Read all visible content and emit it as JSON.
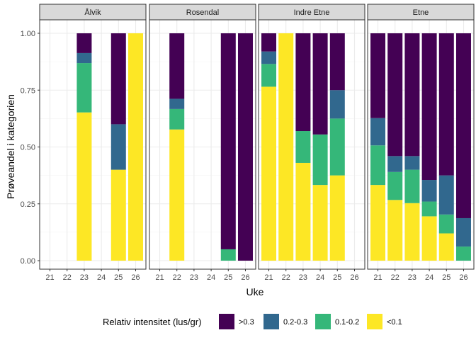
{
  "chart_data": {
    "type": "bar",
    "stacked": true,
    "xlabel": "Uke",
    "ylabel": "Prøveandel i kategorien",
    "ylim": [
      0,
      1
    ],
    "y_ticks": [
      "0.00",
      "0.25",
      "0.50",
      "0.75",
      "1.00"
    ],
    "x_ticks": [
      "21",
      "22",
      "23",
      "24",
      "25",
      "26"
    ],
    "legend": {
      "title": "Relativ intensitet (lus/gr)",
      "position": "bottom",
      "entries": [
        {
          "key": "gt03",
          "label": ">0.3",
          "color": "#440154"
        },
        {
          "key": "b0203",
          "label": "0.2-0.3",
          "color": "#31688E"
        },
        {
          "key": "b0102",
          "label": "0.1-0.2",
          "color": "#35B779"
        },
        {
          "key": "lt01",
          "label": "<0.1",
          "color": "#FDE725"
        }
      ]
    },
    "stack_order_bottom_to_top": [
      "lt01",
      "b0102",
      "b0203",
      "gt03"
    ],
    "panels": [
      {
        "title": "Ålvik",
        "bars": [
          {
            "week": 23,
            "lt01": 0.652,
            "b0102": 0.217,
            "b0203": 0.044,
            "gt03": 0.087
          },
          {
            "week": 25,
            "lt01": 0.4,
            "b0102": 0.0,
            "b0203": 0.2,
            "gt03": 0.4
          },
          {
            "week": 26,
            "lt01": 1.0,
            "b0102": 0.0,
            "b0203": 0.0,
            "gt03": 0.0
          }
        ]
      },
      {
        "title": "Rosendal",
        "bars": [
          {
            "week": 22,
            "lt01": 0.577,
            "b0102": 0.09,
            "b0203": 0.045,
            "gt03": 0.288
          },
          {
            "week": 25,
            "lt01": 0.0,
            "b0102": 0.05,
            "b0203": 0.0,
            "gt03": 0.95
          },
          {
            "week": 26,
            "lt01": 0.0,
            "b0102": 0.0,
            "b0203": 0.0,
            "gt03": 1.0
          }
        ]
      },
      {
        "title": "Indre Etne",
        "bars": [
          {
            "week": 21,
            "lt01": 0.765,
            "b0102": 0.1,
            "b0203": 0.055,
            "gt03": 0.08
          },
          {
            "week": 22,
            "lt01": 1.0,
            "b0102": 0.0,
            "b0203": 0.0,
            "gt03": 0.0
          },
          {
            "week": 23,
            "lt01": 0.43,
            "b0102": 0.14,
            "b0203": 0.0,
            "gt03": 0.43
          },
          {
            "week": 24,
            "lt01": 0.333,
            "b0102": 0.222,
            "b0203": 0.0,
            "gt03": 0.445
          },
          {
            "week": 25,
            "lt01": 0.375,
            "b0102": 0.25,
            "b0203": 0.125,
            "gt03": 0.25
          }
        ]
      },
      {
        "title": "Etne",
        "bars": [
          {
            "week": 21,
            "lt01": 0.333,
            "b0102": 0.174,
            "b0203": 0.12,
            "gt03": 0.373
          },
          {
            "week": 22,
            "lt01": 0.267,
            "b0102": 0.123,
            "b0203": 0.07,
            "gt03": 0.54
          },
          {
            "week": 23,
            "lt01": 0.253,
            "b0102": 0.147,
            "b0203": 0.06,
            "gt03": 0.54
          },
          {
            "week": 24,
            "lt01": 0.195,
            "b0102": 0.065,
            "b0203": 0.095,
            "gt03": 0.645
          },
          {
            "week": 25,
            "lt01": 0.12,
            "b0102": 0.083,
            "b0203": 0.172,
            "gt03": 0.625
          },
          {
            "week": 26,
            "lt01": 0.0,
            "b0102": 0.062,
            "b0203": 0.125,
            "gt03": 0.813
          }
        ]
      }
    ]
  }
}
